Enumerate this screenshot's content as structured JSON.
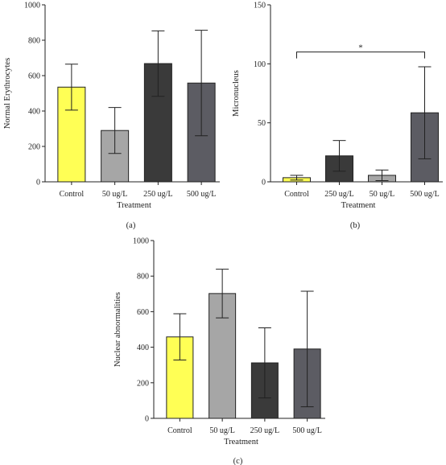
{
  "chart_data": [
    {
      "panel": "(a)",
      "type": "bar",
      "xlabel": "Treatment",
      "ylabel": "Normal Erythrocytes",
      "categories": [
        "Control",
        "50 ug/L",
        "250 ug/L",
        "500 ug/L"
      ],
      "values": [
        535,
        290,
        668,
        558
      ],
      "errors": [
        130,
        130,
        185,
        298
      ],
      "colors": [
        "#ffff55",
        "#a6a6a6",
        "#3a3a3a",
        "#5c5c63"
      ],
      "ylim": [
        0,
        1000
      ],
      "yticks": [
        0,
        200,
        400,
        600,
        800,
        1000
      ],
      "ytick_labels": [
        "0",
        "200",
        "400",
        "600",
        "800",
        "1000"
      ],
      "grid": false,
      "annotations": []
    },
    {
      "panel": "(b)",
      "type": "bar",
      "xlabel": "Treatment",
      "ylabel": "Micronucleus",
      "categories": [
        "Control",
        "250 ug/L",
        "50 ug/L",
        "500 ug/L"
      ],
      "values": [
        3.5,
        22,
        5.5,
        58.5
      ],
      "errors": [
        2,
        13,
        4.5,
        39
      ],
      "colors": [
        "#ffff55",
        "#3a3a3a",
        "#a6a6a6",
        "#5c5c63"
      ],
      "ylim": [
        0,
        150
      ],
      "yticks": [
        0,
        50,
        100,
        150
      ],
      "ytick_labels": [
        "0",
        "50",
        "100",
        "150"
      ],
      "grid": false,
      "annotations": [
        {
          "type": "significance",
          "from": 0,
          "to": 3,
          "y": 110,
          "label": "*"
        }
      ]
    },
    {
      "panel": "(c)",
      "type": "bar",
      "xlabel": "Treatment",
      "ylabel": "Nuclear abnormalities",
      "categories": [
        "Control",
        "50 ug/L",
        "250 ug/L",
        "500 ug/L"
      ],
      "values": [
        458,
        702,
        312,
        390
      ],
      "errors": [
        130,
        137,
        197,
        325
      ],
      "colors": [
        "#ffff55",
        "#a6a6a6",
        "#3a3a3a",
        "#5c5c63"
      ],
      "ylim": [
        0,
        1000
      ],
      "yticks": [
        0,
        200,
        400,
        600,
        800,
        1000
      ],
      "ytick_labels": [
        "0",
        "200",
        "400",
        "600",
        "800",
        "1000"
      ],
      "grid": false,
      "annotations": []
    }
  ]
}
